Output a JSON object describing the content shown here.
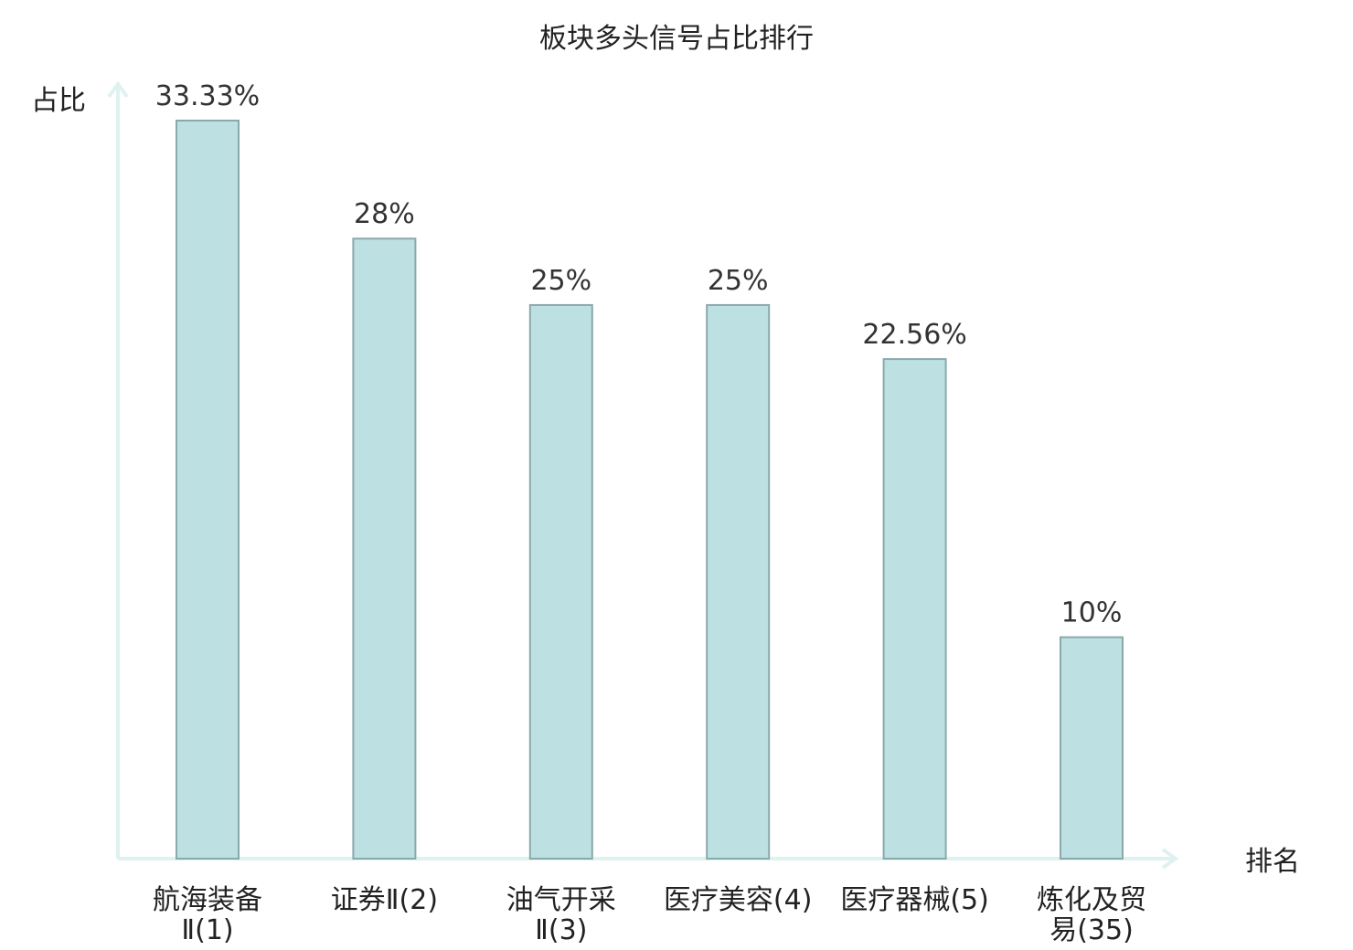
{
  "chart_data": {
    "type": "bar",
    "title": "板块多头信号占比排行",
    "ylabel": "占比",
    "xlabel": "排名",
    "categories": [
      [
        "航海装备",
        "Ⅱ(1)"
      ],
      [
        "证券Ⅱ(2)"
      ],
      [
        "油气开采",
        "Ⅱ(3)"
      ],
      [
        "医疗美容(4)"
      ],
      [
        "医疗器械(5)"
      ],
      [
        "炼化及贸",
        "易(35)"
      ]
    ],
    "values": [
      33.33,
      28,
      25,
      25,
      22.56,
      10
    ],
    "value_labels": [
      "33.33%",
      "28%",
      "25%",
      "25%",
      "22.56%",
      "10%"
    ],
    "highlight_index": 5,
    "ylim": [
      0,
      33.33
    ],
    "grid": false,
    "colors": {
      "bar_fill": "#bde0e3",
      "bar_stroke": "#8aa9ab",
      "axis": "#dff2f0",
      "highlight_label": "#e8141a",
      "text": "#222222"
    }
  }
}
